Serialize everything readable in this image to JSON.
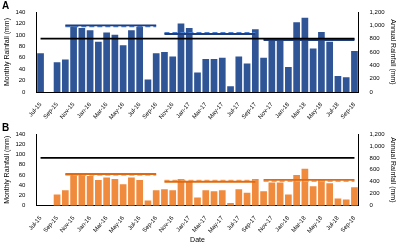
{
  "chart_data": [
    {
      "type": "bar",
      "title": "A",
      "categories": [
        "Jul-15",
        null,
        "Sep-15",
        null,
        "Nov-15",
        null,
        "Jan-16",
        null,
        "Mar-16",
        null,
        "May-16",
        null,
        "Jul-16",
        null,
        "Sep-16",
        null,
        "Nov-16",
        null,
        "Jan-17",
        null,
        "Mar-17",
        null,
        "May-17",
        null,
        "Jul-17",
        null,
        "Sep-17",
        null,
        "Nov-17",
        null,
        "Jan-18",
        null,
        "Mar-18",
        null,
        "May-18",
        null,
        "Jul-18",
        null,
        "Sep-18"
      ],
      "ylabel": "Monthly Rainfall (mm)",
      "y2label": "Annual Rainfall (mm)",
      "ylim": [
        0,
        140
      ],
      "yticks": [
        0,
        20,
        40,
        60,
        80,
        100,
        120,
        140
      ],
      "y2lim": [
        0,
        1200
      ],
      "y2ticks": [
        0,
        200,
        400,
        600,
        800,
        1000,
        1200
      ],
      "grid": false,
      "series": [
        {
          "type": "bar",
          "color": "#2f5597",
          "values": [
            68,
            0,
            52,
            57,
            115,
            112,
            108,
            88,
            104,
            100,
            82,
            108,
            114,
            22,
            68,
            70,
            62,
            120,
            112,
            34,
            58,
            58,
            60,
            10,
            62,
            50,
            110,
            60,
            90,
            90,
            44,
            122,
            130,
            76,
            105,
            88,
            28,
            26,
            72
          ]
        },
        {
          "type": "line",
          "axis": "y2",
          "color": "#000000",
          "line_style": "solid",
          "values": [
            800,
            800,
            800,
            800,
            800,
            800,
            800,
            800,
            800,
            800,
            800,
            800,
            800,
            800,
            800,
            800,
            800,
            800,
            800,
            800,
            800,
            800,
            800,
            800,
            800,
            800,
            800,
            800,
            800,
            800,
            800,
            800,
            800,
            800,
            800,
            800,
            800,
            800,
            800
          ]
        },
        {
          "type": "line",
          "axis": "y2",
          "color": "#1f3e7a",
          "line_style": "solid",
          "values": [
            null,
            null,
            null,
            1000,
            1000,
            1000,
            1000,
            1000,
            1000,
            1000,
            1000,
            1000,
            1000,
            1000,
            1000,
            null,
            null,
            null,
            null,
            null,
            null,
            null,
            null,
            null,
            null,
            null,
            null,
            null,
            null,
            null,
            null,
            null,
            null,
            null,
            null,
            null,
            null,
            null,
            null
          ]
        },
        {
          "type": "line",
          "axis": "y2",
          "color": "#4a7fd4",
          "line_style": "dashed",
          "values": [
            null,
            null,
            null,
            985,
            985,
            985,
            985,
            985,
            985,
            985,
            985,
            985,
            985,
            985,
            985,
            null,
            null,
            null,
            null,
            null,
            null,
            null,
            null,
            null,
            null,
            null,
            null,
            null,
            null,
            null,
            null,
            null,
            null,
            null,
            null,
            null,
            null,
            null,
            null
          ]
        },
        {
          "type": "line",
          "axis": "y2",
          "color": "#1f3e7a",
          "line_style": "solid",
          "values": [
            null,
            null,
            null,
            null,
            null,
            null,
            null,
            null,
            null,
            null,
            null,
            null,
            null,
            null,
            null,
            870,
            870,
            870,
            870,
            870,
            870,
            870,
            870,
            870,
            870,
            870,
            870,
            null,
            null,
            null,
            null,
            null,
            null,
            null,
            null,
            null,
            null,
            null,
            null
          ]
        },
        {
          "type": "line",
          "axis": "y2",
          "color": "#4a7fd4",
          "line_style": "dashed",
          "values": [
            null,
            null,
            null,
            null,
            null,
            null,
            null,
            null,
            null,
            null,
            null,
            null,
            null,
            null,
            null,
            885,
            885,
            885,
            885,
            885,
            885,
            885,
            885,
            885,
            885,
            885,
            885,
            null,
            null,
            null,
            null,
            null,
            null,
            null,
            null,
            null,
            null,
            null,
            null
          ]
        },
        {
          "type": "line",
          "axis": "y2",
          "color": "#1f3e7a",
          "line_style": "solid",
          "values": [
            null,
            null,
            null,
            null,
            null,
            null,
            null,
            null,
            null,
            null,
            null,
            null,
            null,
            null,
            null,
            null,
            null,
            null,
            null,
            null,
            null,
            null,
            null,
            null,
            null,
            null,
            null,
            780,
            780,
            780,
            780,
            780,
            780,
            780,
            780,
            780,
            780,
            780,
            780
          ]
        },
        {
          "type": "line",
          "axis": "y2",
          "color": "#4a7fd4",
          "line_style": "dashed",
          "values": [
            null,
            null,
            null,
            null,
            null,
            null,
            null,
            null,
            null,
            null,
            null,
            null,
            null,
            null,
            null,
            null,
            null,
            null,
            null,
            null,
            null,
            null,
            null,
            null,
            null,
            null,
            null,
            795,
            795,
            795,
            795,
            795,
            795,
            795,
            795,
            795,
            795,
            795,
            795
          ]
        }
      ]
    },
    {
      "type": "bar",
      "title": "B",
      "categories": [
        "Jul-15",
        null,
        "Sep-15",
        null,
        "Nov-15",
        null,
        "Jan-16",
        null,
        "Mar-16",
        null,
        "May-16",
        null,
        "Jul-16",
        null,
        "Sep-16",
        null,
        "Nov-16",
        null,
        "Jan-17",
        null,
        "Mar-17",
        null,
        "May-17",
        null,
        "Jul-17",
        null,
        "Sep-17",
        null,
        "Nov-17",
        null,
        "Jan-18",
        null,
        "Mar-18",
        null,
        "May-18",
        null,
        "Jul-18",
        null,
        "Sep-18"
      ],
      "xlabel": "Date",
      "ylabel": "Monthly Rainfall (mm)",
      "y2label": "Annual Rainfall (mm)",
      "ylim": [
        0,
        140
      ],
      "yticks": [
        0,
        20,
        40,
        60,
        80,
        100,
        120,
        140
      ],
      "y2lim": [
        0,
        1200
      ],
      "y2ticks": [
        0,
        200,
        400,
        600,
        800,
        1000,
        1200
      ],
      "grid": false,
      "series": [
        {
          "type": "bar",
          "color": "#f08a3c",
          "values": [
            0,
            0,
            22,
            30,
            62,
            60,
            58,
            50,
            55,
            52,
            42,
            55,
            50,
            10,
            30,
            32,
            30,
            52,
            48,
            16,
            30,
            28,
            30,
            5,
            32,
            25,
            52,
            28,
            45,
            45,
            22,
            60,
            72,
            38,
            50,
            44,
            14,
            12,
            36
          ]
        },
        {
          "type": "line",
          "axis": "y2",
          "color": "#000000",
          "line_style": "solid",
          "values": [
            800,
            800,
            800,
            800,
            800,
            800,
            800,
            800,
            800,
            800,
            800,
            800,
            800,
            800,
            800,
            800,
            800,
            800,
            800,
            800,
            800,
            800,
            800,
            800,
            800,
            800,
            800,
            800,
            800,
            800,
            800,
            800,
            800,
            800,
            800,
            800,
            800,
            800,
            800
          ]
        },
        {
          "type": "line",
          "axis": "y2",
          "color": "#e06a10",
          "line_style": "solid",
          "values": [
            null,
            null,
            null,
            530,
            530,
            530,
            530,
            530,
            530,
            530,
            530,
            530,
            530,
            530,
            530,
            null,
            null,
            null,
            null,
            null,
            null,
            null,
            null,
            null,
            null,
            null,
            null,
            null,
            null,
            null,
            null,
            null,
            null,
            null,
            null,
            null,
            null,
            null,
            null
          ]
        },
        {
          "type": "line",
          "axis": "y2",
          "color": "#f4a460",
          "line_style": "dashed",
          "values": [
            null,
            null,
            null,
            515,
            515,
            515,
            515,
            515,
            515,
            515,
            515,
            515,
            515,
            515,
            515,
            null,
            null,
            null,
            null,
            null,
            null,
            null,
            null,
            null,
            null,
            null,
            null,
            null,
            null,
            null,
            null,
            null,
            null,
            null,
            null,
            null,
            null,
            null,
            null
          ]
        },
        {
          "type": "line",
          "axis": "y2",
          "color": "#e06a10",
          "line_style": "solid",
          "values": [
            null,
            null,
            null,
            null,
            null,
            null,
            null,
            null,
            null,
            null,
            null,
            null,
            null,
            null,
            null,
            400,
            400,
            400,
            400,
            400,
            400,
            400,
            400,
            400,
            400,
            400,
            400,
            null,
            null,
            null,
            null,
            null,
            null,
            null,
            null,
            null,
            null,
            null,
            null
          ]
        },
        {
          "type": "line",
          "axis": "y2",
          "color": "#f4a460",
          "line_style": "dashed",
          "values": [
            null,
            null,
            null,
            null,
            null,
            null,
            null,
            null,
            null,
            null,
            null,
            null,
            null,
            null,
            null,
            420,
            420,
            420,
            420,
            420,
            420,
            420,
            420,
            420,
            420,
            420,
            420,
            null,
            null,
            null,
            null,
            null,
            null,
            null,
            null,
            null,
            null,
            null,
            null
          ]
        },
        {
          "type": "line",
          "axis": "y2",
          "color": "#e06a10",
          "line_style": "solid",
          "values": [
            null,
            null,
            null,
            null,
            null,
            null,
            null,
            null,
            null,
            null,
            null,
            null,
            null,
            null,
            null,
            null,
            null,
            null,
            null,
            null,
            null,
            null,
            null,
            null,
            null,
            null,
            null,
            430,
            430,
            430,
            430,
            430,
            430,
            430,
            430,
            430,
            430,
            430,
            430
          ]
        },
        {
          "type": "line",
          "axis": "y2",
          "color": "#f4a460",
          "line_style": "dashed",
          "values": [
            null,
            null,
            null,
            null,
            null,
            null,
            null,
            null,
            null,
            null,
            null,
            null,
            null,
            null,
            null,
            null,
            null,
            null,
            null,
            null,
            null,
            null,
            null,
            null,
            null,
            null,
            null,
            410,
            410,
            410,
            410,
            410,
            410,
            410,
            410,
            410,
            410,
            410,
            410
          ]
        }
      ]
    }
  ]
}
